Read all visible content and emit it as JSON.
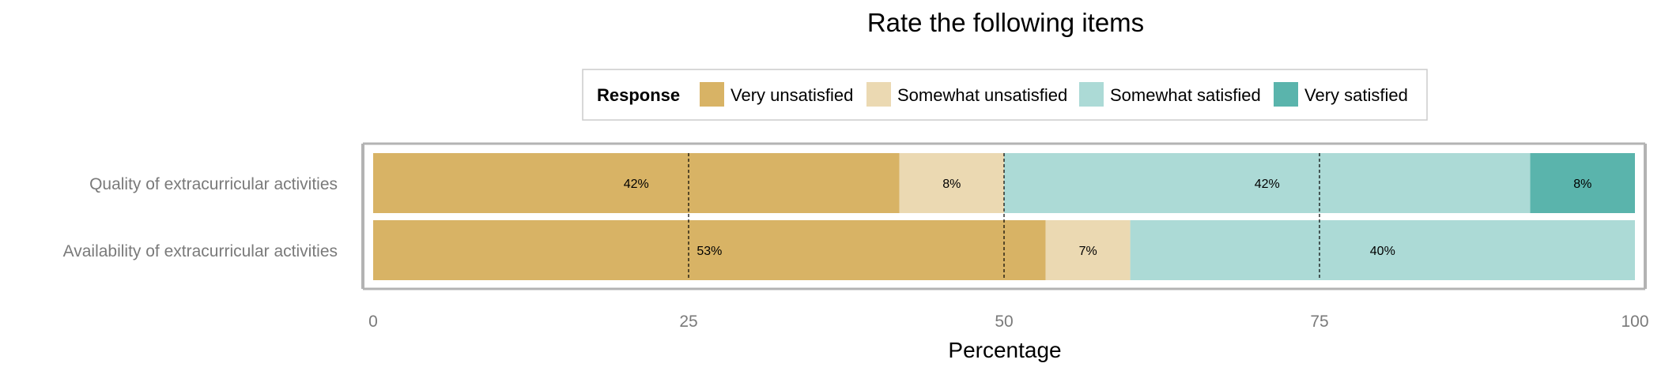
{
  "chart_data": {
    "type": "bar",
    "orientation": "horizontal",
    "stacked": true,
    "title": "Rate the following items",
    "xlabel": "Percentage",
    "ylabel": "",
    "xlim": [
      0,
      100
    ],
    "x_ticks": [
      0,
      25,
      50,
      75,
      100
    ],
    "grid": true,
    "reference_lines": [
      25,
      50,
      75
    ],
    "legend": {
      "title": "Response",
      "position": "top"
    },
    "categories": [
      "Quality of extracurricular activities",
      "Availability of extracurricular activities"
    ],
    "series": [
      {
        "name": "Very unsatisfied",
        "color": "#d8b365",
        "values": [
          41.7,
          53.3
        ],
        "labels": [
          "42%",
          "53%"
        ]
      },
      {
        "name": "Somewhat unsatisfied",
        "color": "#ebd9b2",
        "values": [
          8.3,
          6.7
        ],
        "labels": [
          "8%",
          "7%"
        ]
      },
      {
        "name": "Somewhat satisfied",
        "color": "#acdad6",
        "values": [
          41.7,
          40.0
        ],
        "labels": [
          "42%",
          "40%"
        ]
      },
      {
        "name": "Very satisfied",
        "color": "#5ab4ac",
        "values": [
          8.3,
          0
        ],
        "labels": [
          "8%",
          ""
        ]
      }
    ]
  }
}
